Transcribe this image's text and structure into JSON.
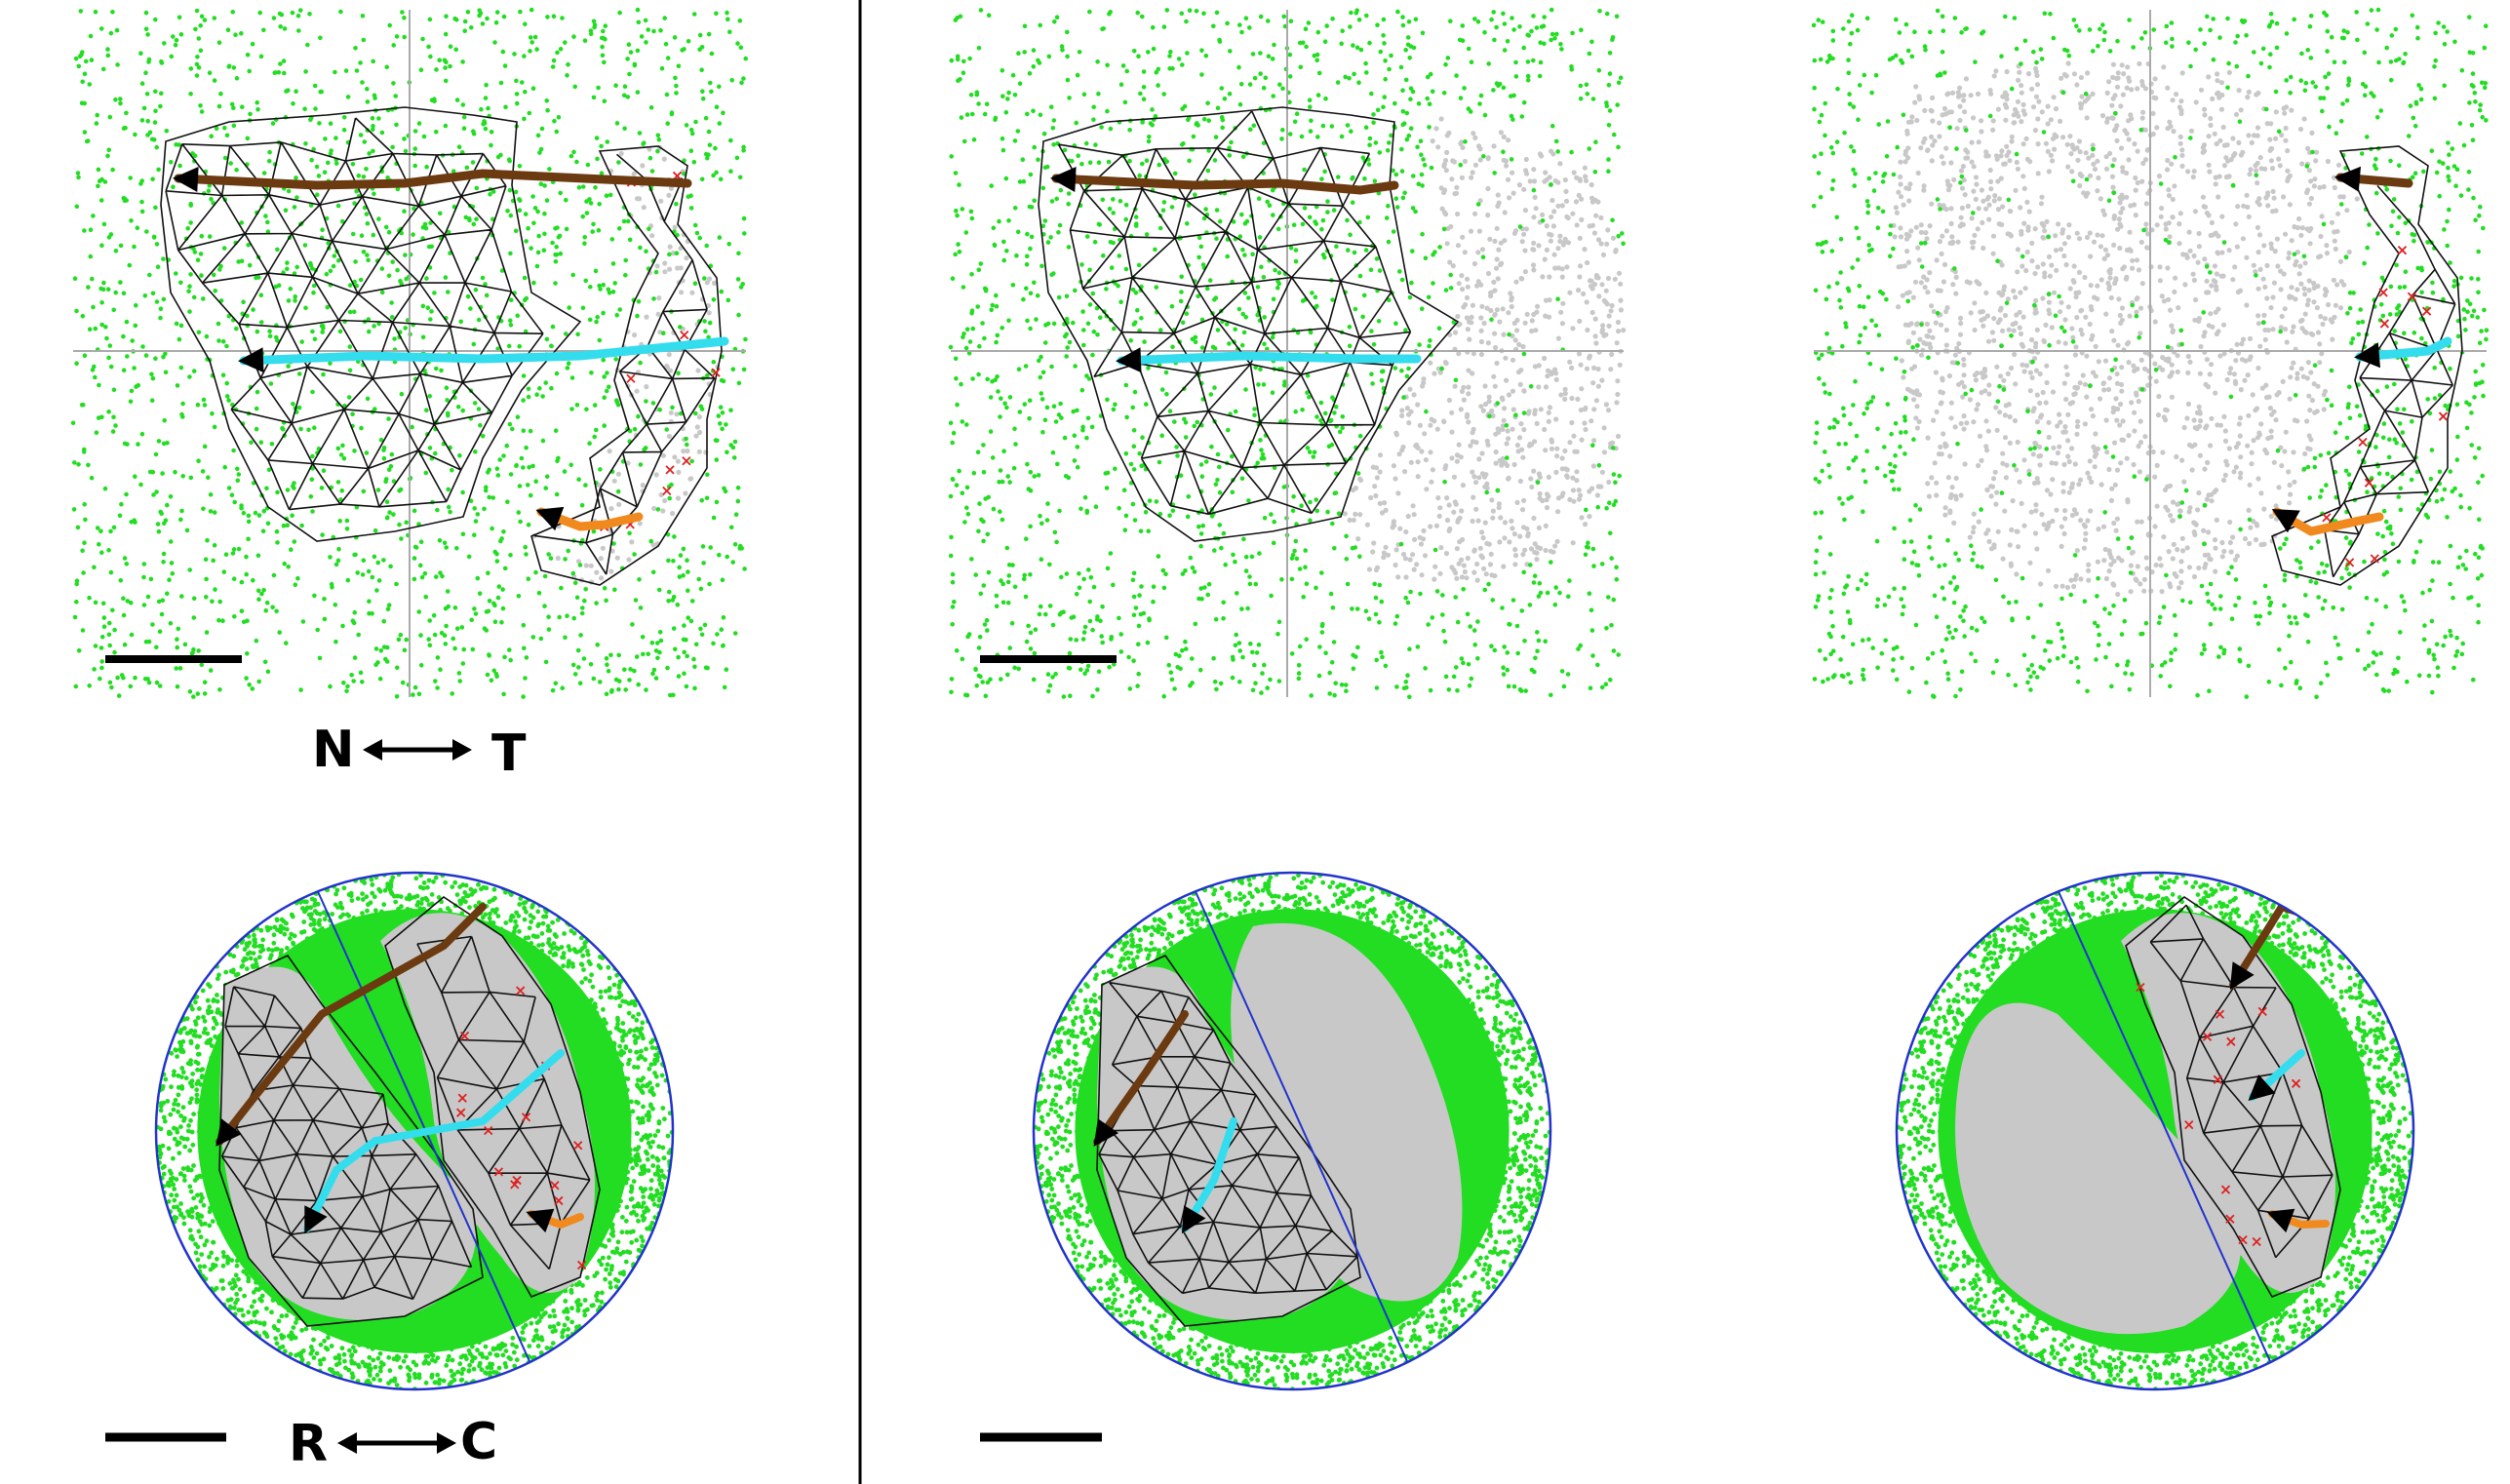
{
  "labels": {
    "nasal": "N",
    "temporal": "T",
    "rostral": "R",
    "caudal": "C"
  },
  "panels": [
    {
      "id": "full",
      "field_cut": "none"
    },
    {
      "id": "nasal-half",
      "field_cut": "temporal"
    },
    {
      "id": "temporal-half",
      "field_cut": "nasal"
    }
  ],
  "colors": {
    "field_points": "#22dd22",
    "unmapped_points": "#c8c8c8",
    "mesh": "#111111",
    "axis_cross": "#aaaaaa",
    "disc_outline": "#2233cc",
    "crosses": "#dd2222",
    "path_top": "#6b3a10",
    "path_mid": "#33ddee",
    "path_low": "#f08a1e",
    "arrowhead": "#000000",
    "divider": "#000000"
  },
  "icons": [
    "double-arrow-icon",
    "arrowhead-icon"
  ]
}
